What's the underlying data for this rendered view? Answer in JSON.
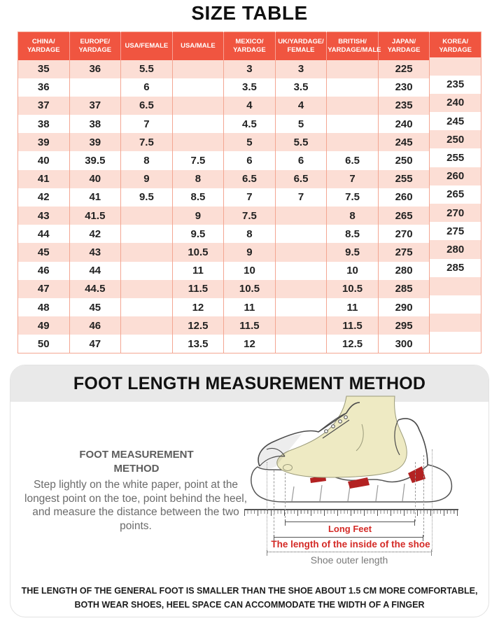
{
  "page": {
    "title": "SIZE TABLE"
  },
  "size_table": {
    "columns": [
      "CHINA/\nYARDAGE",
      "EUROPE/\nYARDAGE",
      "USA/FEMALE",
      "USA/MALE",
      "MEXICO/\nYARDAGE",
      "UK/YARDAGE/\nFEMALE",
      "BRITISH/\nYARDAGE/MALE",
      "JAPAN/\nYARDAGE",
      "KOREA/\nYARDAGE"
    ],
    "rows": [
      [
        "35",
        "36",
        "5.5",
        "",
        "3",
        "3",
        "",
        "225",
        ""
      ],
      [
        "36",
        "",
        "6",
        "",
        "3.5",
        "3.5",
        "",
        "230",
        "235"
      ],
      [
        "37",
        "37",
        "6.5",
        "",
        "4",
        "4",
        "",
        "235",
        "240"
      ],
      [
        "38",
        "38",
        "7",
        "",
        "4.5",
        "5",
        "",
        "240",
        "245"
      ],
      [
        "39",
        "39",
        "7.5",
        "",
        "5",
        "5.5",
        "",
        "245",
        "250"
      ],
      [
        "40",
        "39.5",
        "8",
        "7.5",
        "6",
        "6",
        "6.5",
        "250",
        "255"
      ],
      [
        "41",
        "40",
        "9",
        "8",
        "6.5",
        "6.5",
        "7",
        "255",
        "260"
      ],
      [
        "42",
        "41",
        "9.5",
        "8.5",
        "7",
        "7",
        "7.5",
        "260",
        "265"
      ],
      [
        "43",
        "41.5",
        "",
        "9",
        "7.5",
        "",
        "8",
        "265",
        "270"
      ],
      [
        "44",
        "42",
        "",
        "9.5",
        "8",
        "",
        "8.5",
        "270",
        "275"
      ],
      [
        "45",
        "43",
        "",
        "10.5",
        "9",
        "",
        "9.5",
        "275",
        "280"
      ],
      [
        "46",
        "44",
        "",
        "11",
        "10",
        "",
        "10",
        "280",
        "285"
      ],
      [
        "47",
        "44.5",
        "",
        "11.5",
        "10.5",
        "",
        "10.5",
        "285",
        ""
      ],
      [
        "48",
        "45",
        "",
        "12",
        "11",
        "",
        "11",
        "290",
        ""
      ],
      [
        "49",
        "46",
        "",
        "12.5",
        "11.5",
        "",
        "11.5",
        "295",
        ""
      ],
      [
        "50",
        "47",
        "",
        "13.5",
        "12",
        "",
        "12.5",
        "300",
        ""
      ]
    ]
  },
  "measurement": {
    "section_title": "FOOT LENGTH MEASUREMENT METHOD",
    "method_title": "FOOT MEASUREMENT\nMETHOD",
    "method_text": "Step lightly on the white paper, point at the longest point on the toe, point behind the heel, and measure the distance between the two points.",
    "labels": {
      "long_feet": "Long Feet",
      "inside_length": "The length of the inside of the shoe",
      "outer_length": "Shoe outer length"
    },
    "note": "THE LENGTH OF THE GENERAL FOOT IS SMALLER THAN THE SHOE ABOUT 1.5 CM MORE COMFORTABLE,\nBOTH WEAR SHOES, HEEL SPACE CAN ACCOMMODATE THE WIDTH OF A FINGER"
  },
  "colors": {
    "accent": "#f05540",
    "separator": "#f3a692",
    "row_pink": "#fcded5",
    "band_gray": "#e9e9e9",
    "red_label": "#d42a26",
    "sole_red": "#b32222",
    "foot_yellow": "#eeeac3"
  }
}
